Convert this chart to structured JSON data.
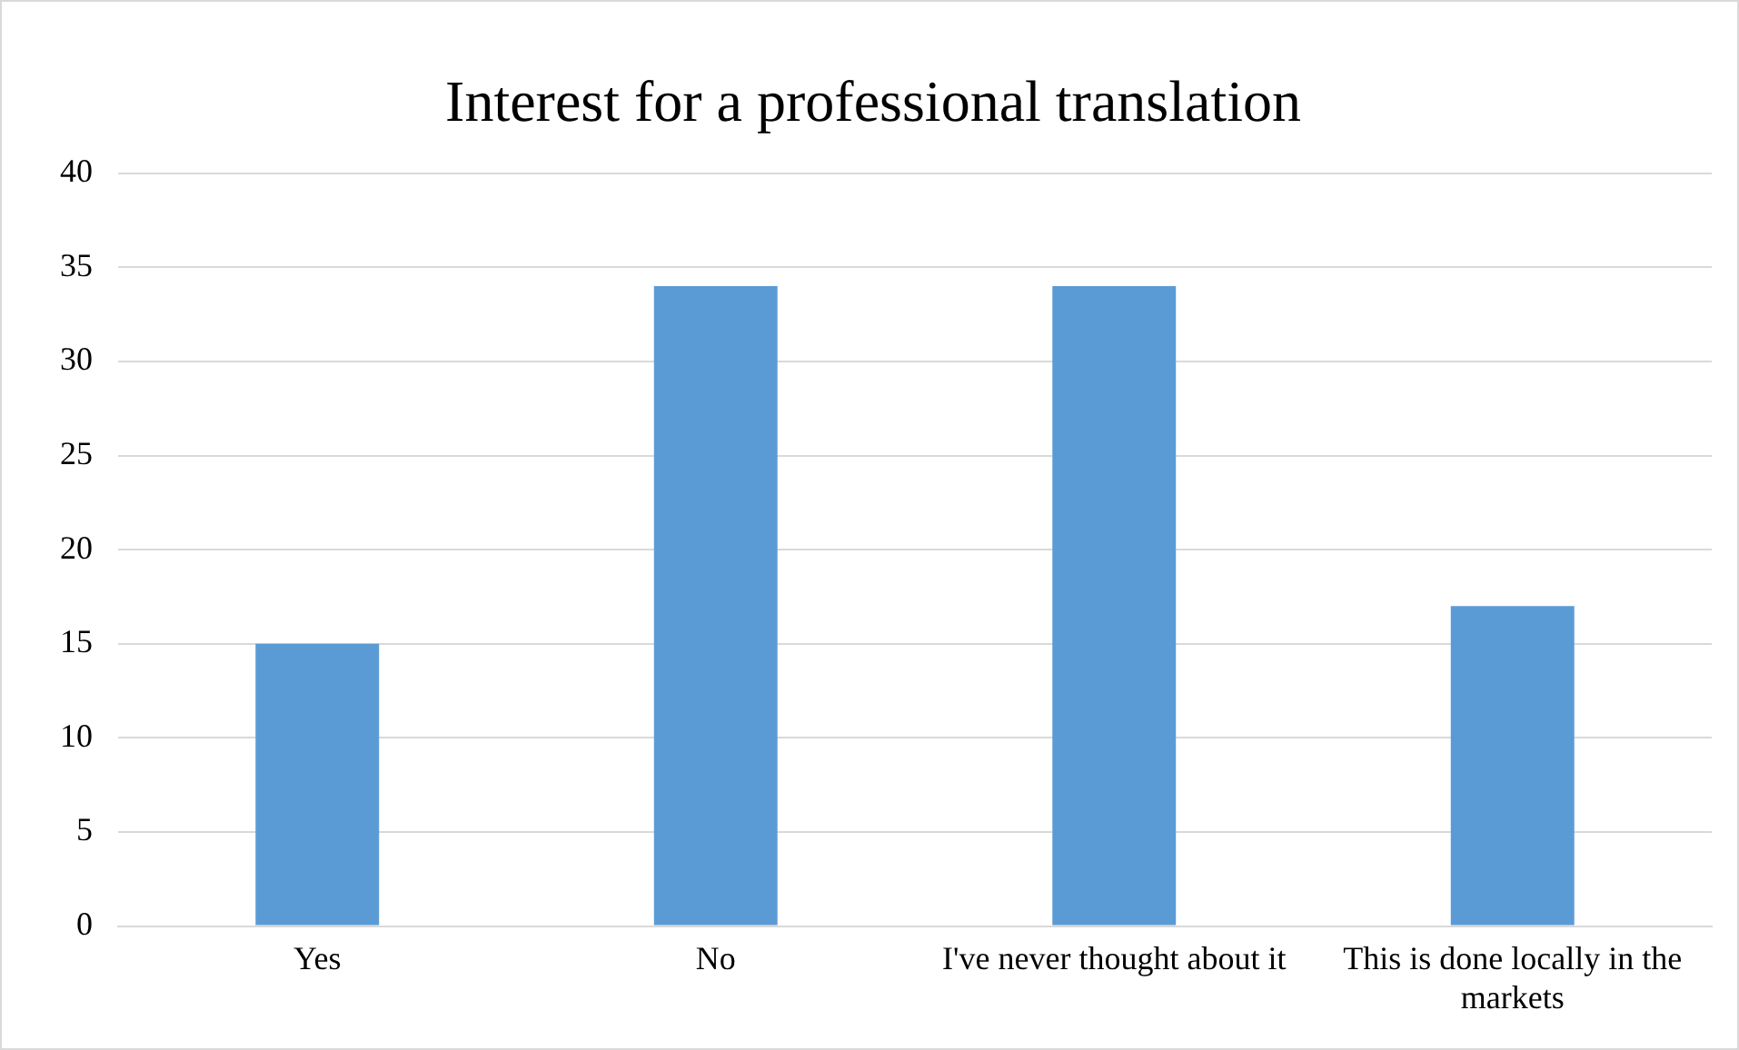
{
  "chart_data": {
    "type": "bar",
    "title": "Interest for a professional translation",
    "categories": [
      "Yes",
      "No",
      "I've never thought about it",
      "This is done locally in the markets"
    ],
    "values": [
      15,
      34,
      34,
      17
    ],
    "color": "#5b9bd5",
    "ylim": [
      0,
      40
    ],
    "yticks": [
      0,
      5,
      10,
      15,
      20,
      25,
      30,
      35,
      40
    ],
    "grid": "y"
  }
}
